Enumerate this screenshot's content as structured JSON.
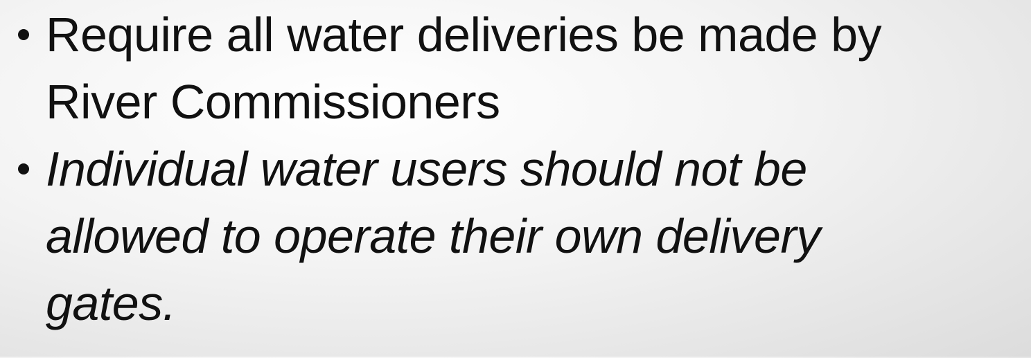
{
  "bullets": [
    {
      "lines": [
        "Require all water deliveries be made by",
        "River Commissioners"
      ],
      "italic": false
    },
    {
      "lines": [
        "Individual water users should not be",
        "allowed to operate their own delivery",
        "gates."
      ],
      "italic": true
    }
  ]
}
